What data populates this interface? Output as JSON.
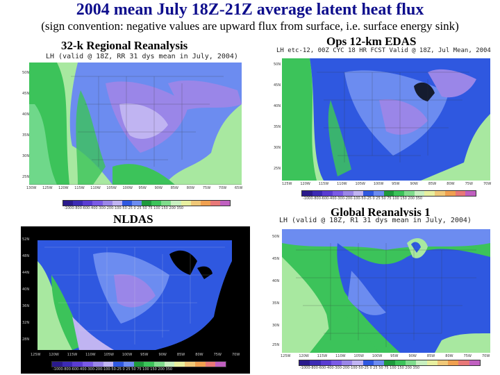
{
  "title": "2004 mean July 18Z-21Z average latent heat flux",
  "subtitle": "(sign convention: negative values are upward flux from surface, i.e. surface energy sink)",
  "panels": {
    "rr": {
      "label": "32-k Regional Reanalysis",
      "header": "LH (valid @ 18Z, RR 31 dys mean in July, 2004)",
      "lat_ticks": [
        "50N",
        "45N",
        "40N",
        "35N",
        "30N",
        "25N"
      ],
      "lon_ticks": [
        "130W",
        "125W",
        "120W",
        "115W",
        "110W",
        "105W",
        "100W",
        "95W",
        "90W",
        "85W",
        "80W",
        "75W",
        "70W",
        "65W"
      ],
      "colorbar": "-1000-800-600-400-300-200-100-50-25 0 25 50 75 100 150 200 350"
    },
    "edas": {
      "label": "Ops 12-km EDAS",
      "header": "LH etc-12, 00Z CYC 18 HR FCST Valid @ 18Z, Jul Mean, 2004",
      "lat_ticks": [
        "50N",
        "45N",
        "40N",
        "35N",
        "30N",
        "25N"
      ],
      "lon_ticks": [
        "125W",
        "120W",
        "115W",
        "110W",
        "105W",
        "100W",
        "95W",
        "90W",
        "85W",
        "80W",
        "75W",
        "70W"
      ],
      "colorbar": "-1000-800-600-400-300-200-100-50-25 0 25 50 75 100 150 200 350"
    },
    "nldas": {
      "label": "NLDAS",
      "lat_ticks": [
        "52N",
        "48N",
        "44N",
        "40N",
        "36N",
        "32N",
        "28N"
      ],
      "lon_ticks": [
        "125W",
        "120W",
        "115W",
        "110W",
        "105W",
        "100W",
        "95W",
        "90W",
        "85W",
        "80W",
        "75W",
        "70W"
      ],
      "colorbar": "-1000-800-600-400-300-200-100-50-25 0 25 50 75 100 150 200 350"
    },
    "gr1": {
      "label": "Global Reanalysis 1",
      "header": "LH (valid @ 18Z, R1 31 dys mean in July, 2004)",
      "lat_ticks": [
        "50N",
        "45N",
        "40N",
        "35N",
        "30N",
        "25N"
      ],
      "lon_ticks": [
        "125W",
        "120W",
        "115W",
        "110W",
        "105W",
        "100W",
        "95W",
        "90W",
        "85W",
        "80W",
        "75W",
        "70W"
      ],
      "colorbar": "-1000-800-600-400-300-200-100-50-25 0 25 50 75 100 150 200 350"
    }
  },
  "colors": {
    "title": "#0d0d8c",
    "ocean_light": "#a8e8a0",
    "ocean_green": "#3cc35a",
    "land_blue": "#2f58e0",
    "land_light_blue": "#6c8cf0",
    "land_purple": "#9a86e8",
    "land_lilac": "#c0b4f2",
    "lake": "#000000"
  }
}
